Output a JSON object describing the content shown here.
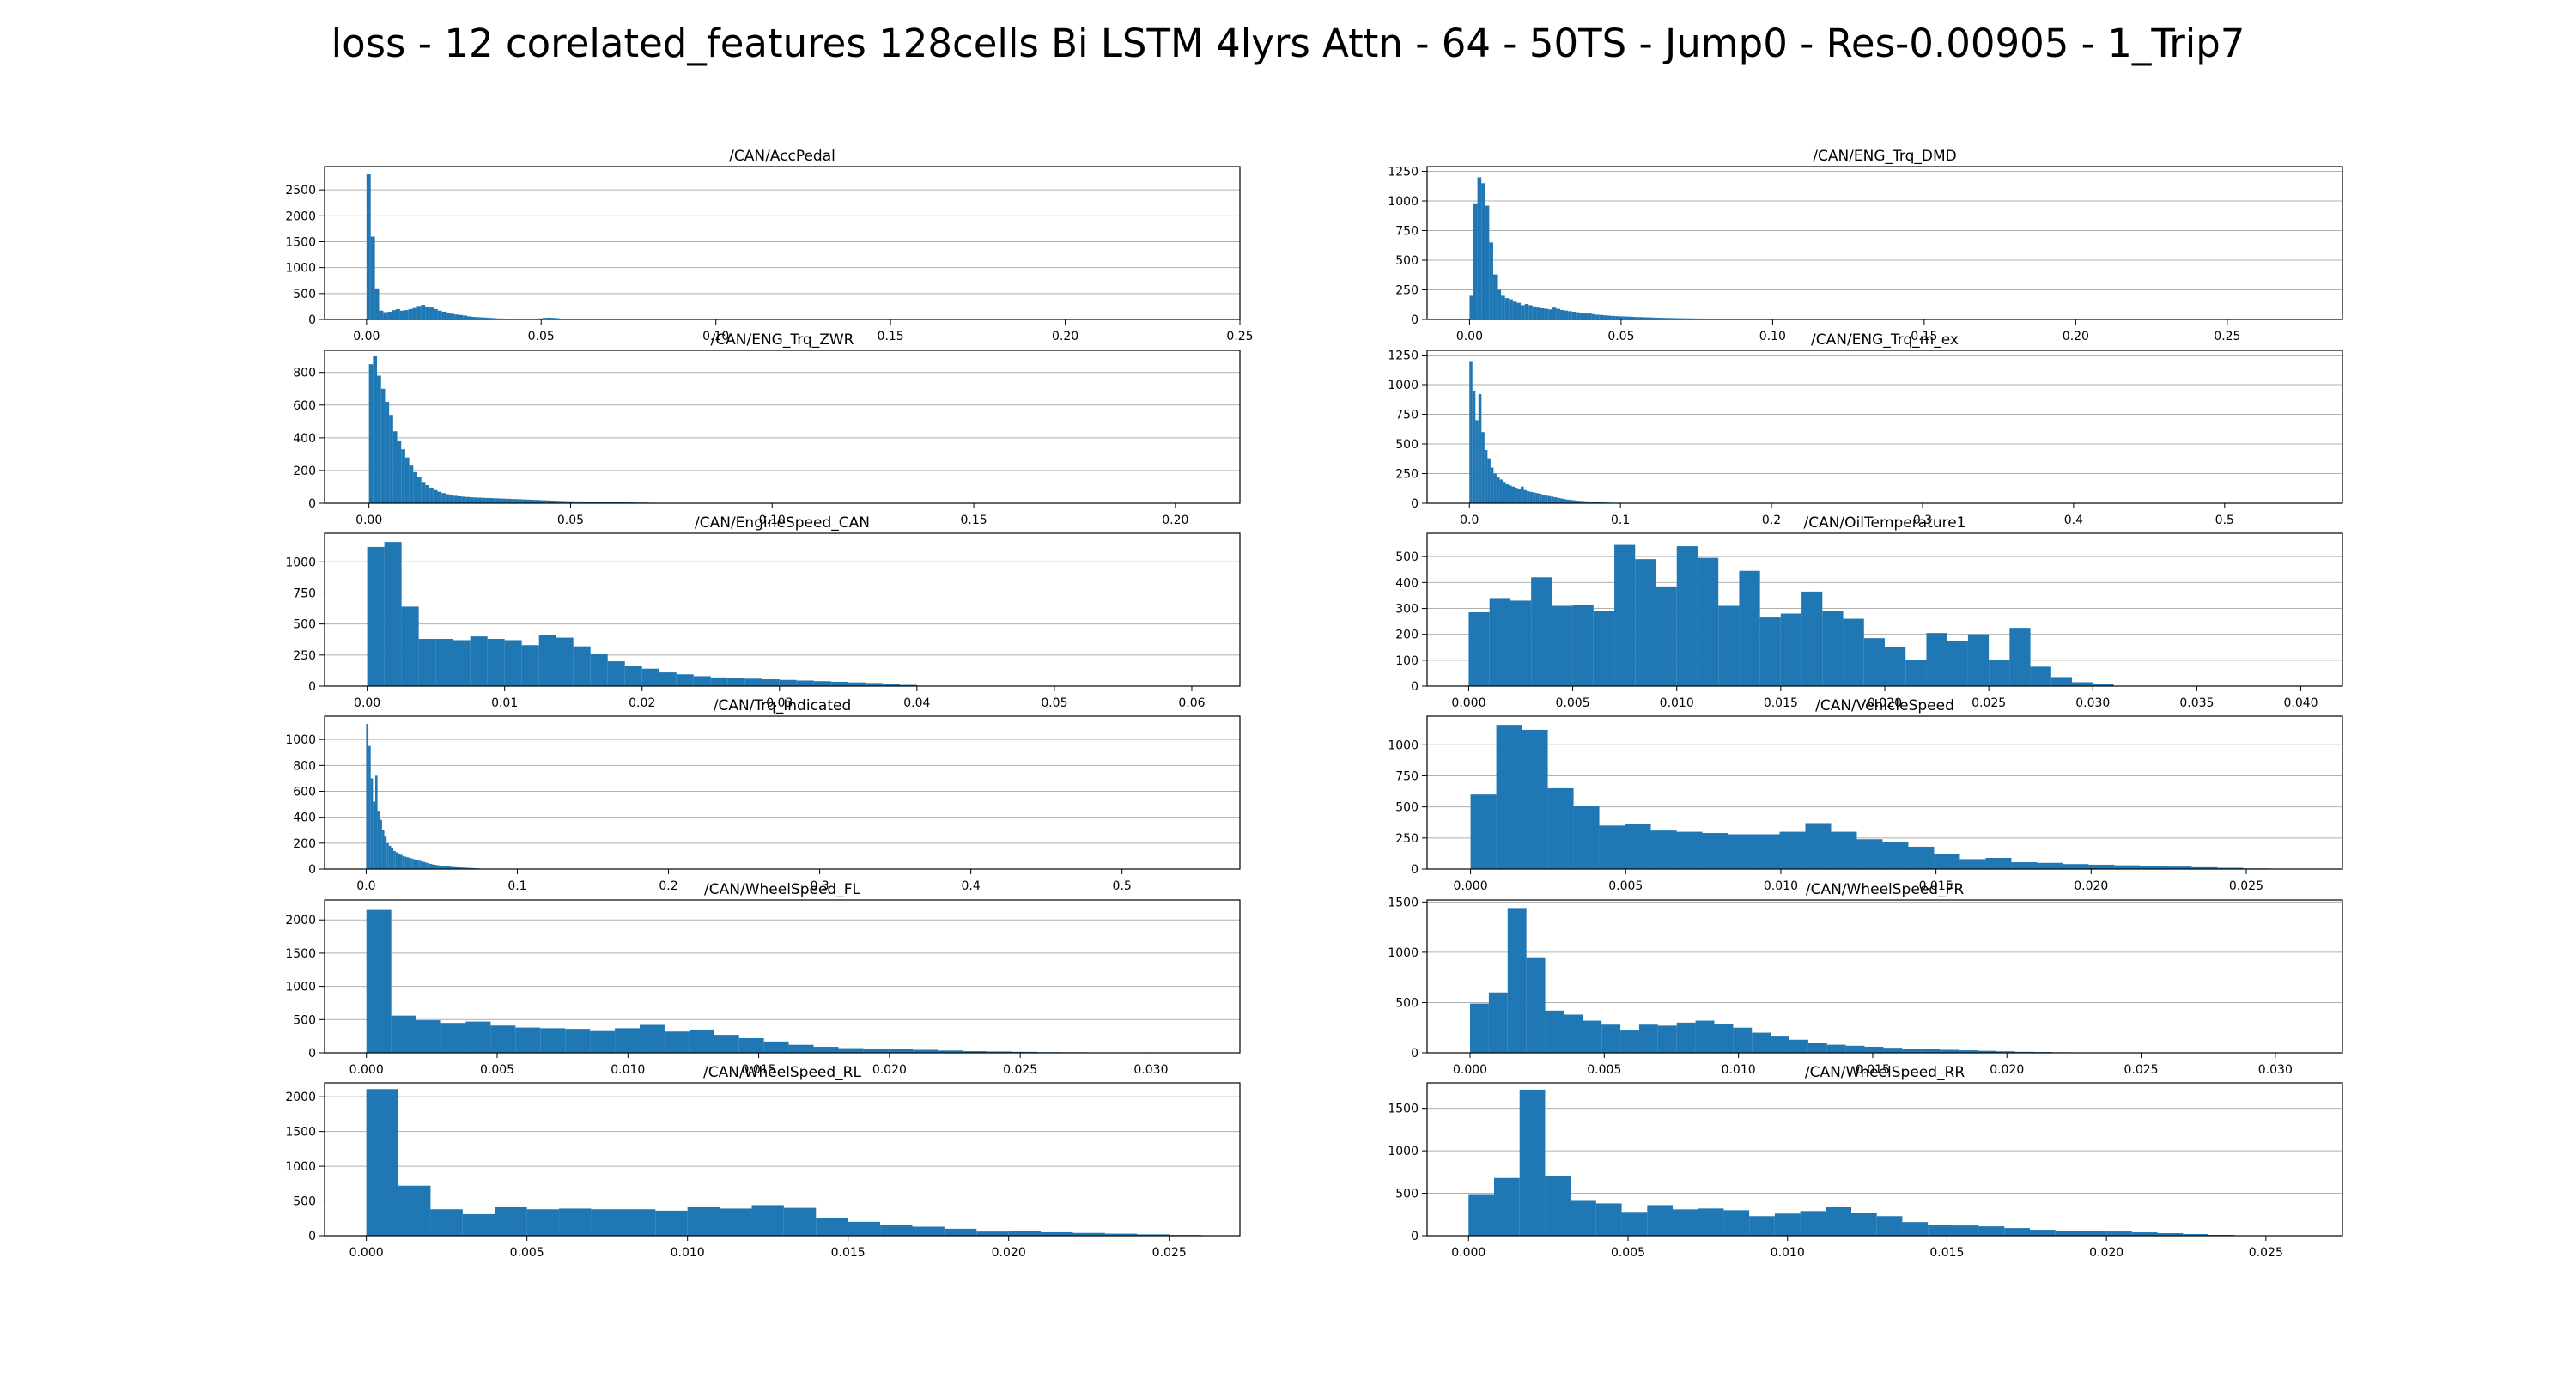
{
  "figure": {
    "title": "loss - 12 corelated_features 128cells Bi LSTM 4lyrs Attn - 64 - 50TS - Jump0 - Res-0.00905 - 1_Trip7"
  },
  "colors": {
    "bar": "#1f77b4",
    "grid": "#b0b0b0",
    "axis": "#000000"
  },
  "chart_data": [
    {
      "type": "bar",
      "title": "/CAN/AccPedal",
      "xlabel": "",
      "ylabel": "",
      "xlim": [
        -0.012,
        0.25
      ],
      "ylim": [
        0,
        2950
      ],
      "xticks": [
        0.0,
        0.05,
        0.1,
        0.15,
        0.2,
        0.25
      ],
      "xtick_labels": [
        "0.00",
        "0.05",
        "0.10",
        "0.15",
        "0.20",
        "0.25"
      ],
      "yticks": [
        0,
        500,
        1000,
        1500,
        2000,
        2500
      ],
      "ytick_labels": [
        "0",
        "500",
        "1000",
        "1500",
        "2000",
        "2500"
      ],
      "bin_start": 0,
      "bin_width": 0.0012,
      "grid": "y",
      "values": [
        2800,
        1600,
        600,
        170,
        140,
        150,
        180,
        200,
        170,
        180,
        200,
        220,
        260,
        280,
        250,
        230,
        200,
        170,
        150,
        130,
        110,
        95,
        85,
        75,
        60,
        50,
        45,
        40,
        35,
        30,
        25,
        20,
        18,
        15,
        12,
        10,
        9,
        8,
        7,
        6,
        12,
        20,
        30,
        35,
        30,
        25,
        15,
        8,
        5,
        4,
        3,
        3,
        2,
        2,
        2,
        1,
        1,
        1,
        1,
        1
      ]
    },
    {
      "type": "bar",
      "title": "/CAN/ENG_Trq_DMD",
      "xlabel": "",
      "ylabel": "",
      "xlim": [
        -0.014,
        0.288
      ],
      "ylim": [
        0,
        1290
      ],
      "xticks": [
        0.0,
        0.05,
        0.1,
        0.15,
        0.2,
        0.25
      ],
      "xtick_labels": [
        "0.00",
        "0.05",
        "0.10",
        "0.15",
        "0.20",
        "0.25"
      ],
      "yticks": [
        0,
        250,
        500,
        750,
        1000,
        1250
      ],
      "ytick_labels": [
        "0",
        "250",
        "500",
        "750",
        "1000",
        "1250"
      ],
      "bin_start": 0,
      "bin_width": 0.0013,
      "grid": "y",
      "values": [
        200,
        980,
        1200,
        1150,
        960,
        650,
        380,
        250,
        200,
        180,
        170,
        150,
        140,
        120,
        130,
        120,
        110,
        100,
        95,
        90,
        85,
        100,
        90,
        80,
        75,
        70,
        65,
        60,
        55,
        50,
        50,
        45,
        40,
        38,
        35,
        32,
        30,
        28,
        26,
        25,
        24,
        22,
        20,
        20,
        18,
        18,
        16,
        15,
        14,
        13,
        12,
        12,
        11,
        10,
        10,
        9,
        9,
        8,
        8,
        7,
        7,
        6,
        6,
        5,
        5,
        5,
        4,
        4,
        4,
        3
      ]
    },
    {
      "type": "bar",
      "title": "/CAN/ENG_Trq_ZWR",
      "xlabel": "",
      "ylabel": "",
      "xlim": [
        -0.011,
        0.216
      ],
      "ylim": [
        0,
        935
      ],
      "xticks": [
        0.0,
        0.05,
        0.1,
        0.15,
        0.2
      ],
      "xtick_labels": [
        "0.00",
        "0.05",
        "0.10",
        "0.15",
        "0.20"
      ],
      "yticks": [
        0,
        200,
        400,
        600,
        800
      ],
      "ytick_labels": [
        "0",
        "200",
        "400",
        "600",
        "800"
      ],
      "bin_start": 0,
      "bin_width": 0.001,
      "grid": "y",
      "values": [
        850,
        900,
        780,
        700,
        620,
        540,
        440,
        380,
        330,
        280,
        230,
        190,
        160,
        130,
        110,
        95,
        80,
        70,
        62,
        55,
        50,
        45,
        42,
        40,
        38,
        36,
        35,
        34,
        33,
        32,
        31,
        30,
        29,
        28,
        27,
        26,
        25,
        24,
        23,
        22,
        21,
        20,
        19,
        18,
        17,
        16,
        15,
        14,
        13,
        12,
        12,
        11,
        11,
        10,
        10,
        9,
        9,
        8,
        8,
        7,
        7,
        6,
        6,
        5,
        5,
        5,
        4,
        4,
        4,
        3
      ]
    },
    {
      "type": "bar",
      "title": "/CAN/ENG_Trq_m_ex",
      "xlabel": "",
      "ylabel": "",
      "xlim": [
        -0.028,
        0.578
      ],
      "ylim": [
        0,
        1290
      ],
      "xticks": [
        0.0,
        0.1,
        0.2,
        0.3,
        0.4,
        0.5
      ],
      "xtick_labels": [
        "0.0",
        "0.1",
        "0.2",
        "0.3",
        "0.4",
        "0.5"
      ],
      "yticks": [
        0,
        250,
        500,
        750,
        1000,
        1250
      ],
      "ytick_labels": [
        "0",
        "250",
        "500",
        "750",
        "1000",
        "1250"
      ],
      "bin_start": 0,
      "bin_width": 0.002,
      "grid": "y",
      "values": [
        1200,
        950,
        700,
        920,
        600,
        450,
        380,
        300,
        250,
        220,
        200,
        180,
        160,
        150,
        140,
        130,
        120,
        140,
        110,
        100,
        95,
        90,
        85,
        80,
        70,
        65,
        60,
        55,
        50,
        45,
        40,
        35,
        30,
        28,
        25,
        22,
        20,
        18,
        16,
        14,
        12,
        10,
        9,
        8,
        7,
        6,
        5,
        4,
        3,
        3
      ]
    },
    {
      "type": "bar",
      "title": "/CAN/EngineSpeed_CAN",
      "xlabel": "",
      "ylabel": "",
      "xlim": [
        -0.0031,
        0.0635
      ],
      "ylim": [
        0,
        1230
      ],
      "xticks": [
        0.0,
        0.01,
        0.02,
        0.03,
        0.04,
        0.05,
        0.06
      ],
      "xtick_labels": [
        "0.00",
        "0.01",
        "0.02",
        "0.03",
        "0.04",
        "0.05",
        "0.06"
      ],
      "yticks": [
        0,
        250,
        500,
        750,
        1000
      ],
      "ytick_labels": [
        "0",
        "250",
        "500",
        "750",
        "1000"
      ],
      "bin_start": 0,
      "bin_width": 0.00125,
      "grid": "y",
      "values": [
        1120,
        1160,
        640,
        380,
        380,
        370,
        400,
        380,
        370,
        330,
        410,
        390,
        320,
        260,
        200,
        160,
        140,
        110,
        95,
        80,
        70,
        65,
        60,
        55,
        50,
        45,
        40,
        35,
        30,
        25,
        20,
        10
      ]
    },
    {
      "type": "bar",
      "title": "/CAN/OilTemperature1",
      "xlabel": "",
      "ylabel": "",
      "xlim": [
        -0.002,
        0.042
      ],
      "ylim": [
        0,
        590
      ],
      "xticks": [
        0.0,
        0.005,
        0.01,
        0.015,
        0.02,
        0.025,
        0.03,
        0.035,
        0.04
      ],
      "xtick_labels": [
        "0.000",
        "0.005",
        "0.010",
        "0.015",
        "0.020",
        "0.025",
        "0.030",
        "0.035",
        "0.040"
      ],
      "yticks": [
        0,
        100,
        200,
        300,
        400,
        500
      ],
      "ytick_labels": [
        "0",
        "100",
        "200",
        "300",
        "400",
        "500"
      ],
      "bin_start": 0,
      "bin_width": 0.001,
      "grid": "y",
      "values": [
        285,
        340,
        330,
        420,
        310,
        315,
        290,
        545,
        490,
        385,
        540,
        495,
        310,
        445,
        265,
        280,
        365,
        290,
        260,
        185,
        150,
        100,
        205,
        175,
        200,
        100,
        225,
        75,
        35,
        15,
        10
      ]
    },
    {
      "type": "bar",
      "title": "/CAN/Trq_Indicated",
      "xlabel": "",
      "ylabel": "",
      "xlim": [
        -0.0275,
        0.578
      ],
      "ylim": [
        0,
        1180
      ],
      "xticks": [
        0.0,
        0.1,
        0.2,
        0.3,
        0.4,
        0.5
      ],
      "xtick_labels": [
        "0.0",
        "0.1",
        "0.2",
        "0.3",
        "0.4",
        "0.5"
      ],
      "yticks": [
        0,
        200,
        400,
        600,
        800,
        1000
      ],
      "ytick_labels": [
        "0",
        "200",
        "400",
        "600",
        "800",
        "1000"
      ],
      "bin_start": 0,
      "bin_width": 0.0015,
      "grid": "y",
      "values": [
        1120,
        950,
        700,
        520,
        720,
        450,
        380,
        300,
        250,
        200,
        180,
        160,
        140,
        130,
        120,
        110,
        100,
        95,
        90,
        85,
        80,
        75,
        70,
        65,
        60,
        55,
        50,
        45,
        40,
        36,
        33,
        30,
        28,
        26,
        24,
        22,
        20,
        18,
        16,
        15,
        14,
        13,
        12,
        11,
        10,
        9,
        8,
        7,
        6,
        5
      ]
    },
    {
      "type": "bar",
      "title": "/CAN/VehicleSpeed",
      "xlabel": "",
      "ylabel": "",
      "xlim": [
        -0.0014,
        0.0281
      ],
      "ylim": [
        0,
        1230
      ],
      "xticks": [
        0.0,
        0.005,
        0.01,
        0.015,
        0.02,
        0.025
      ],
      "xtick_labels": [
        "0.000",
        "0.005",
        "0.010",
        "0.015",
        "0.020",
        "0.025"
      ],
      "yticks": [
        0,
        250,
        500,
        750,
        1000
      ],
      "ytick_labels": [
        "0",
        "250",
        "500",
        "750",
        "1000"
      ],
      "bin_start": 0,
      "bin_width": 0.00083,
      "grid": "y",
      "values": [
        600,
        1160,
        1120,
        650,
        510,
        350,
        360,
        310,
        300,
        290,
        280,
        280,
        300,
        370,
        300,
        240,
        220,
        180,
        120,
        80,
        90,
        55,
        50,
        40,
        35,
        30,
        25,
        20,
        15,
        10,
        5,
        3
      ]
    },
    {
      "type": "bar",
      "title": "/CAN/WheelSpeed_FL",
      "xlabel": "",
      "ylabel": "",
      "xlim": [
        -0.0016,
        0.0334
      ],
      "ylim": [
        0,
        2300
      ],
      "xticks": [
        0.0,
        0.005,
        0.01,
        0.015,
        0.02,
        0.025,
        0.03
      ],
      "xtick_labels": [
        "0.000",
        "0.005",
        "0.010",
        "0.015",
        "0.020",
        "0.025",
        "0.030"
      ],
      "yticks": [
        0,
        500,
        1000,
        1500,
        2000
      ],
      "ytick_labels": [
        "0",
        "500",
        "1000",
        "1500",
        "2000"
      ],
      "bin_start": 0,
      "bin_width": 0.00095,
      "grid": "y",
      "values": [
        2150,
        560,
        490,
        450,
        470,
        410,
        380,
        370,
        360,
        340,
        370,
        420,
        320,
        350,
        270,
        220,
        170,
        120,
        90,
        70,
        65,
        60,
        45,
        35,
        25,
        20,
        15,
        10,
        8,
        5,
        3,
        2
      ]
    },
    {
      "type": "bar",
      "title": "/CAN/WheelSpeed_FR",
      "xlabel": "",
      "ylabel": "",
      "xlim": [
        -0.0016,
        0.0325
      ],
      "ylim": [
        0,
        1520
      ],
      "xticks": [
        0.0,
        0.005,
        0.01,
        0.015,
        0.02,
        0.025,
        0.03
      ],
      "xtick_labels": [
        "0.000",
        "0.005",
        "0.010",
        "0.015",
        "0.020",
        "0.025",
        "0.030"
      ],
      "yticks": [
        0,
        500,
        1000,
        1500
      ],
      "ytick_labels": [
        "0",
        "500",
        "1000",
        "1500"
      ],
      "bin_start": 0,
      "bin_width": 0.0007,
      "grid": "y",
      "values": [
        490,
        600,
        1440,
        950,
        420,
        380,
        320,
        280,
        230,
        280,
        270,
        300,
        320,
        290,
        250,
        200,
        170,
        130,
        100,
        80,
        70,
        60,
        50,
        40,
        35,
        30,
        25,
        20,
        15,
        10,
        8,
        5,
        3,
        2,
        2
      ]
    },
    {
      "type": "bar",
      "title": "/CAN/WheelSpeed_RL",
      "xlabel": "",
      "ylabel": "",
      "xlim": [
        -0.0013,
        0.0272
      ],
      "ylim": [
        0,
        2200
      ],
      "xticks": [
        0.0,
        0.005,
        0.01,
        0.015,
        0.02,
        0.025
      ],
      "xtick_labels": [
        "0.000",
        "0.005",
        "0.010",
        "0.015",
        "0.020",
        "0.025"
      ],
      "yticks": [
        0,
        500,
        1000,
        1500,
        2000
      ],
      "ytick_labels": [
        "0",
        "500",
        "1000",
        "1500",
        "2000"
      ],
      "bin_start": 0,
      "bin_width": 0.001,
      "grid": "y",
      "values": [
        2110,
        720,
        380,
        310,
        420,
        380,
        390,
        380,
        380,
        360,
        420,
        390,
        440,
        400,
        260,
        200,
        160,
        130,
        100,
        60,
        70,
        50,
        40,
        30,
        20,
        10
      ]
    },
    {
      "type": "bar",
      "title": "/CAN/WheelSpeed_RR",
      "xlabel": "",
      "ylabel": "",
      "xlim": [
        -0.0013,
        0.0274
      ],
      "ylim": [
        0,
        1800
      ],
      "xticks": [
        0.0,
        0.005,
        0.01,
        0.015,
        0.02,
        0.025
      ],
      "xtick_labels": [
        "0.000",
        "0.005",
        "0.010",
        "0.015",
        "0.020",
        "0.025"
      ],
      "yticks": [
        0,
        500,
        1000,
        1500
      ],
      "ytick_labels": [
        "0",
        "500",
        "1000",
        "1500"
      ],
      "bin_start": 0,
      "bin_width": 0.0008,
      "grid": "y",
      "values": [
        490,
        680,
        1720,
        700,
        420,
        380,
        280,
        360,
        310,
        320,
        300,
        230,
        260,
        290,
        340,
        270,
        230,
        160,
        130,
        120,
        110,
        90,
        70,
        60,
        55,
        50,
        40,
        30,
        20,
        10,
        5,
        3
      ]
    }
  ]
}
